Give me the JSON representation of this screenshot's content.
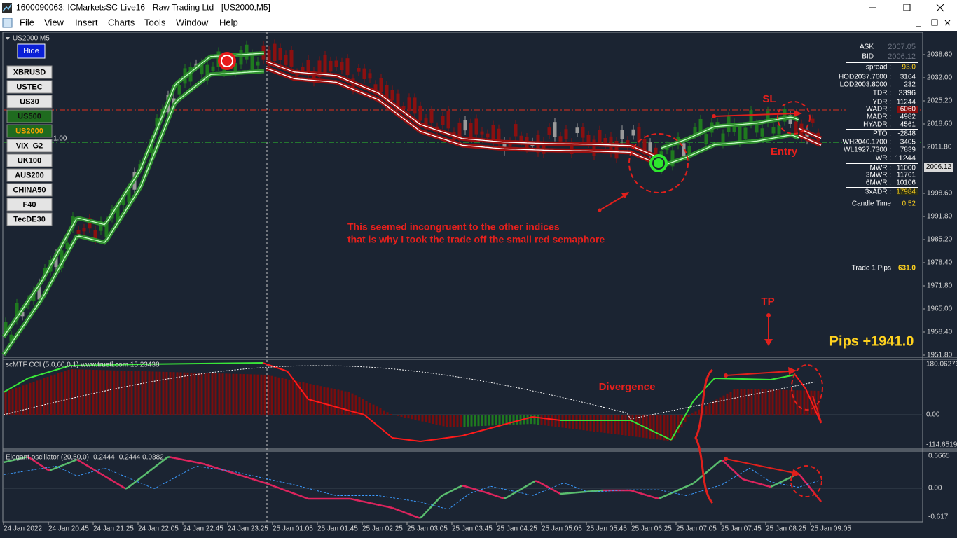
{
  "window": {
    "title": "1600090063: ICMarketsSC-Live16 - Raw Trading Ltd - [US2000,M5]"
  },
  "menu": [
    "File",
    "View",
    "Insert",
    "Charts",
    "Tools",
    "Window",
    "Help"
  ],
  "chart": {
    "symbol_label": "US2000,M5",
    "hide_button": "Hide",
    "symbols": [
      "XBRUSD",
      "USTEC",
      "US30",
      "US500",
      "US2000",
      "VIX_G2",
      "UK100",
      "AUS200",
      "CHINA50",
      "F40",
      "TecDE30"
    ],
    "level_label": "1.00",
    "price_axis": [
      "2038.60",
      "2032.00",
      "2025.20",
      "2018.60",
      "2011.80",
      "1998.60",
      "1991.80",
      "1985.20",
      "1978.40",
      "1971.80",
      "1965.00",
      "1958.40",
      "1951.80"
    ],
    "current_price": "2006.12",
    "info_panel": [
      {
        "label": "ASK",
        "value": "2007.05"
      },
      {
        "label": "BID",
        "value": "2006.12"
      },
      {
        "label": "spread :",
        "value": "93.0"
      },
      {
        "label": "HOD2037.7600 :",
        "value": "3164"
      },
      {
        "label": "LOD2003.8000 :",
        "value": "232"
      },
      {
        "label": "TDR :",
        "value": "3396"
      },
      {
        "label": "YDR :",
        "value": "11244"
      },
      {
        "label": "WADR :",
        "value": "6060"
      },
      {
        "label": "MADR :",
        "value": "4982"
      },
      {
        "label": "HYADR :",
        "value": "4561"
      },
      {
        "label": "PTO :",
        "value": "-2848"
      },
      {
        "label": "WH2040.1700 :",
        "value": "3405"
      },
      {
        "label": "WL1927.7300 :",
        "value": "7839"
      },
      {
        "label": "WR :",
        "value": "11244"
      },
      {
        "label": "MWR :",
        "value": "11000"
      },
      {
        "label": "3MWR :",
        "value": "11761"
      },
      {
        "label": "6MWR :",
        "value": "10106"
      },
      {
        "label": "3xADR :",
        "value": "17984"
      },
      {
        "label": "Candle Time",
        "value": "0:52"
      }
    ],
    "trade_pips": {
      "label": "Trade 1 Pips",
      "value": "631.0"
    },
    "annotations": {
      "sl": "SL",
      "entry": "Entry",
      "note": [
        "This seemed incongruent to the other indices",
        "that is why I took the trade off the small red semaphore"
      ],
      "tp": "TP",
      "pips": "Pips +1941.0",
      "divergence": "Divergence"
    }
  },
  "cci": {
    "label": "scMTF CCI (5,0,60,0,1)  www.truetl.com 15.23438",
    "axis": [
      "180.06279",
      "0.00",
      "-114.6519"
    ]
  },
  "oscillator": {
    "label": "Elegant oscillator (20,50,0) -0.2444 -0.2444 0.0382",
    "axis": [
      "0.6665",
      "0.00",
      "-0.617"
    ]
  },
  "time_axis": [
    "24 Jan 2022",
    "24 Jan 20:45",
    "24 Jan 21:25",
    "24 Jan 22:05",
    "24 Jan 22:45",
    "24 Jan 23:25",
    "25 Jan 01:05",
    "25 Jan 01:45",
    "25 Jan 02:25",
    "25 Jan 03:05",
    "25 Jan 03:45",
    "25 Jan 04:25",
    "25 Jan 05:05",
    "25 Jan 05:45",
    "25 Jan 06:25",
    "25 Jan 07:05",
    "25 Jan 07:45",
    "25 Jan 08:25",
    "25 Jan 09:05"
  ]
}
